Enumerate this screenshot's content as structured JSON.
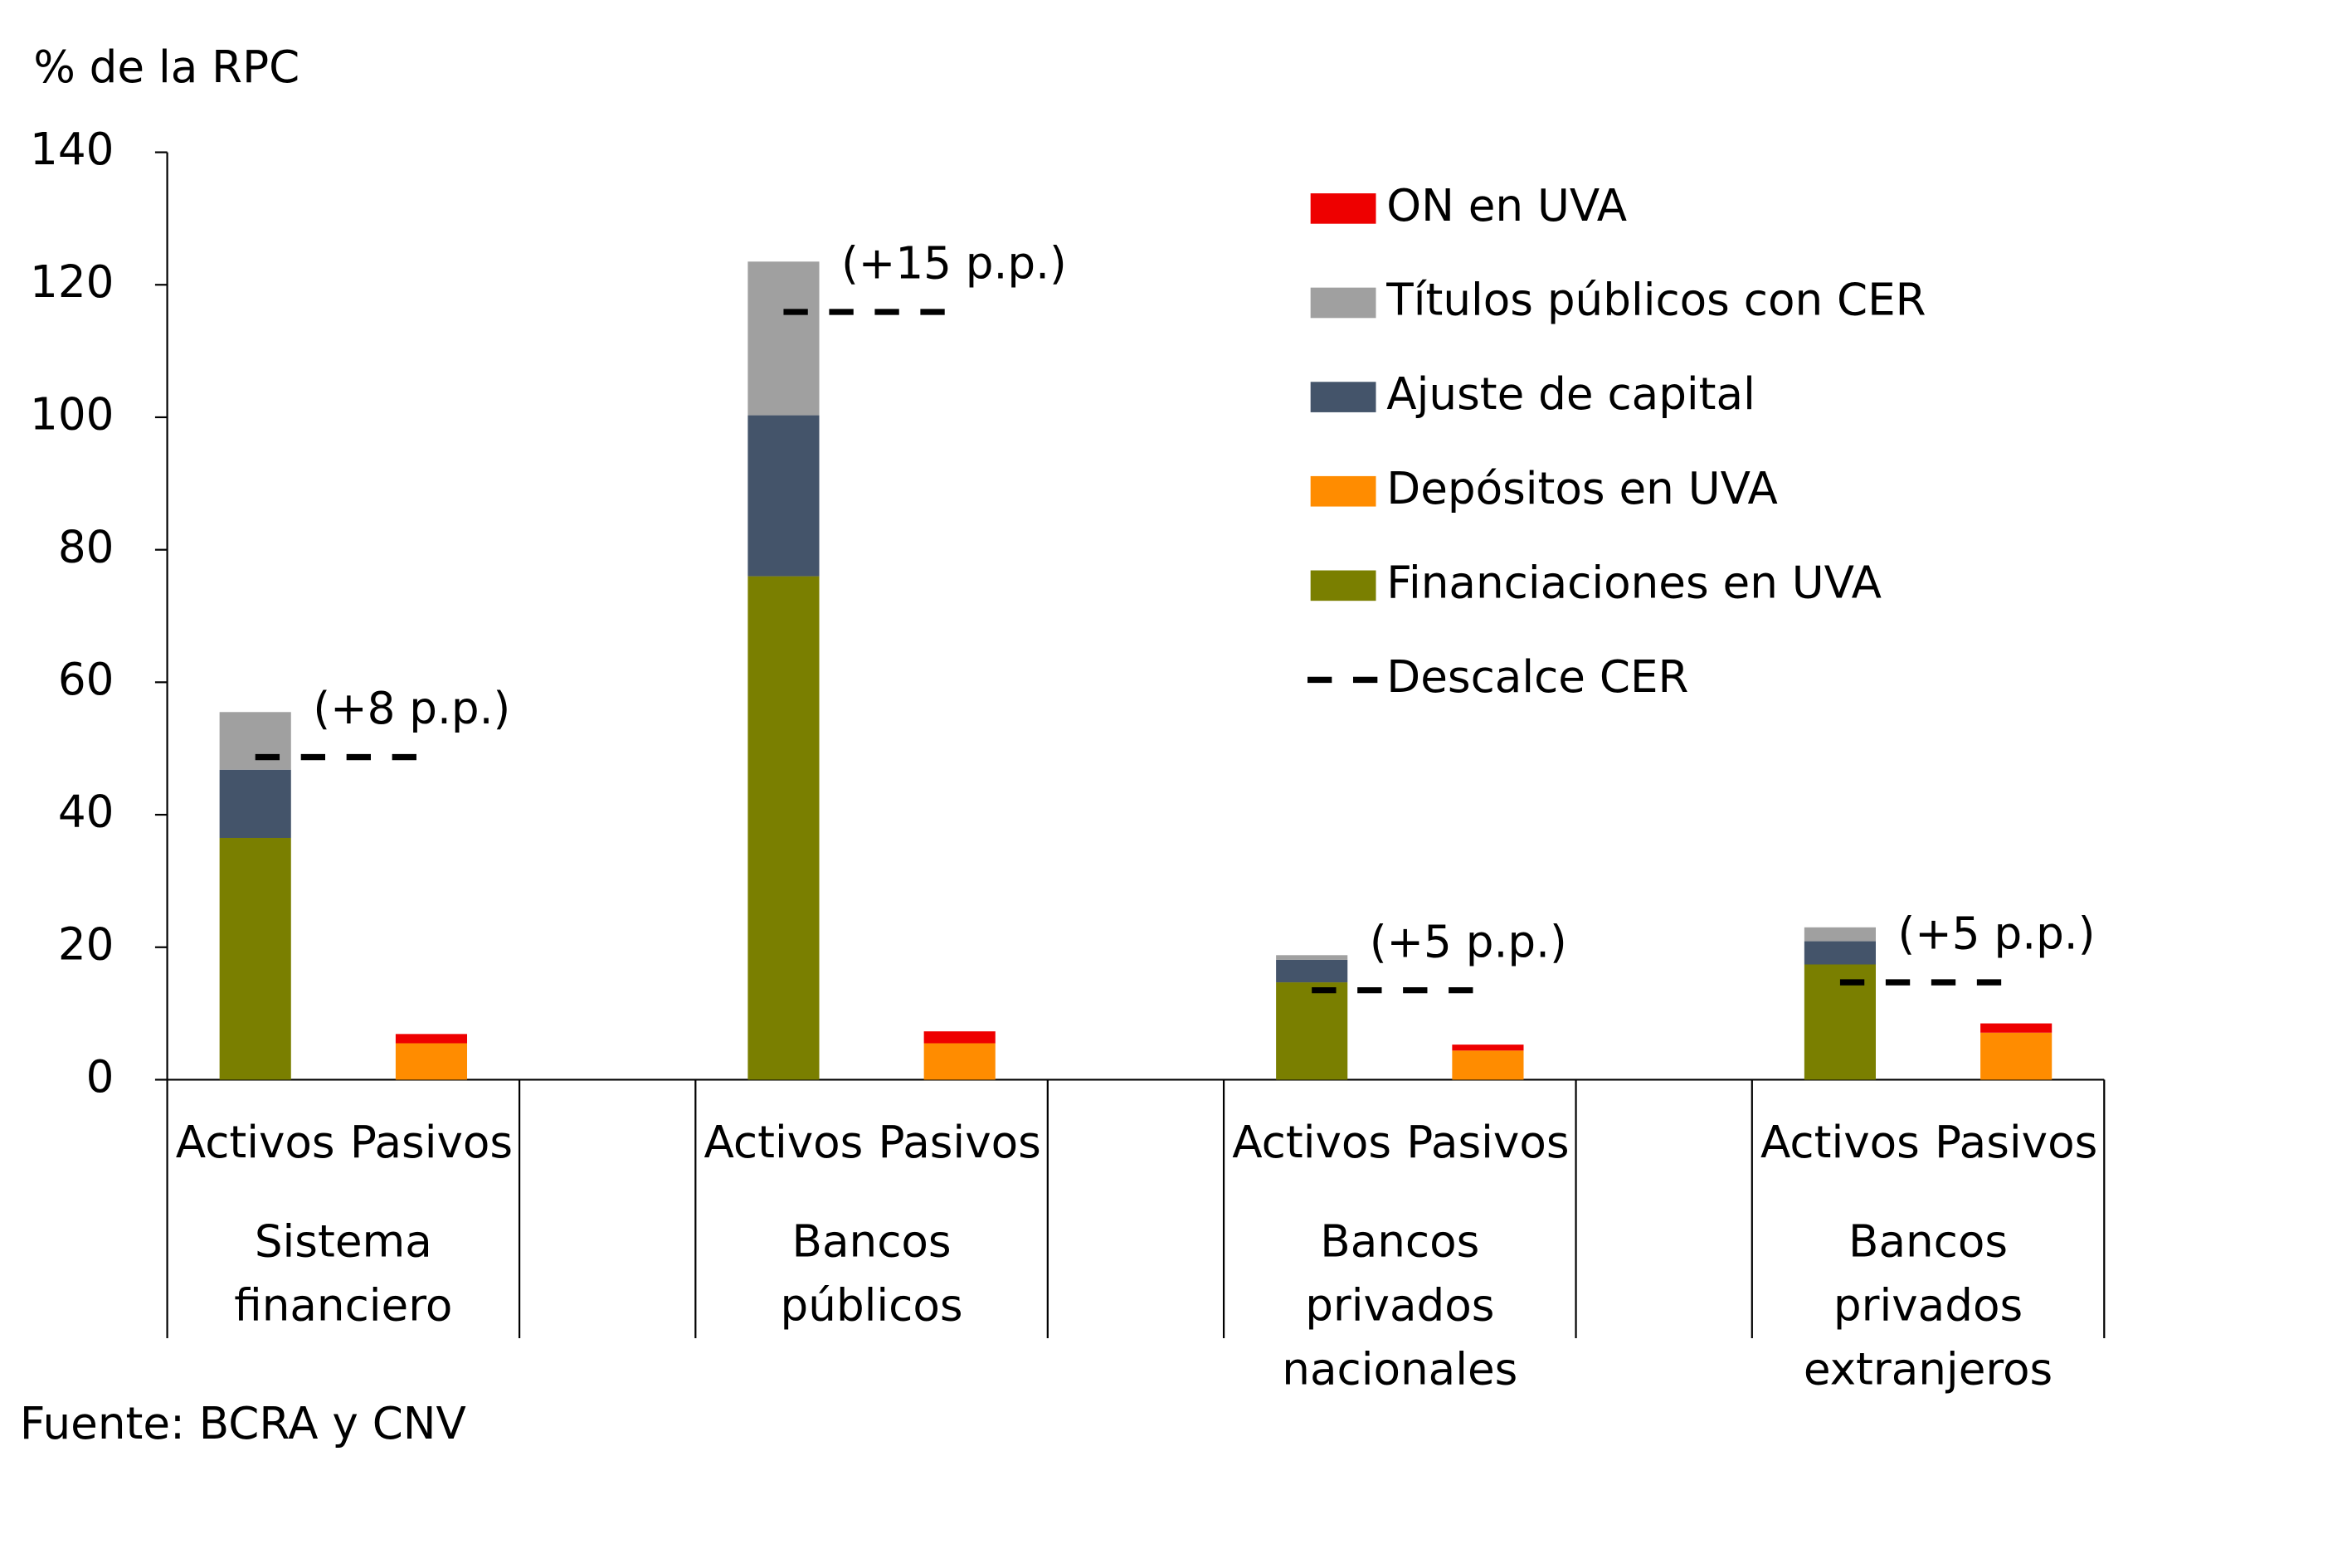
{
  "chart_data": {
    "type": "bar",
    "stacked": true,
    "ylabel": "% de la RPC",
    "source": "Fuente: BCRA y CNV",
    "ylim": [
      0,
      140
    ],
    "yticks": [
      0,
      20,
      40,
      60,
      80,
      100,
      120,
      140
    ],
    "categories": [
      "Activos",
      "Pasivos",
      "Activos",
      "Pasivos",
      "Activos",
      "Pasivos",
      "Activos",
      "Pasivos"
    ],
    "groups": [
      "Sistema financiero",
      "Bancos públicos",
      "Bancos privados nacionales",
      "Bancos privados extranjeros"
    ],
    "series": [
      {
        "name": "Financiaciones en UVA",
        "color": "#7a7f00",
        "values": [
          36.5,
          null,
          76,
          null,
          14.7,
          null,
          17.4,
          null
        ]
      },
      {
        "name": "Depósitos en UVA",
        "color": "#ff8c00",
        "values": [
          null,
          5.5,
          null,
          5.5,
          null,
          4.4,
          null,
          7.1
        ]
      },
      {
        "name": "Ajuste de capital",
        "color": "#44546a",
        "values": [
          10.3,
          null,
          24.3,
          null,
          3.4,
          null,
          3.5,
          null
        ]
      },
      {
        "name": "Títulos públicos con CER",
        "color": "#a0a0a0",
        "values": [
          8.7,
          null,
          23.2,
          null,
          0.7,
          null,
          2.1,
          null
        ]
      },
      {
        "name": "ON en UVA",
        "color": "#ee0000",
        "values": [
          null,
          1.4,
          null,
          1.8,
          null,
          0.9,
          null,
          1.4
        ]
      }
    ],
    "mismatch": {
      "name": "Descalce CER",
      "color": "#000000",
      "values": [
        48.7,
        115.9,
        13.5,
        14.7
      ]
    },
    "annotations": [
      "(+8 p.p.)",
      "(+15 p.p.)",
      "(+5 p.p.)",
      "(+5 p.p.)"
    ]
  }
}
